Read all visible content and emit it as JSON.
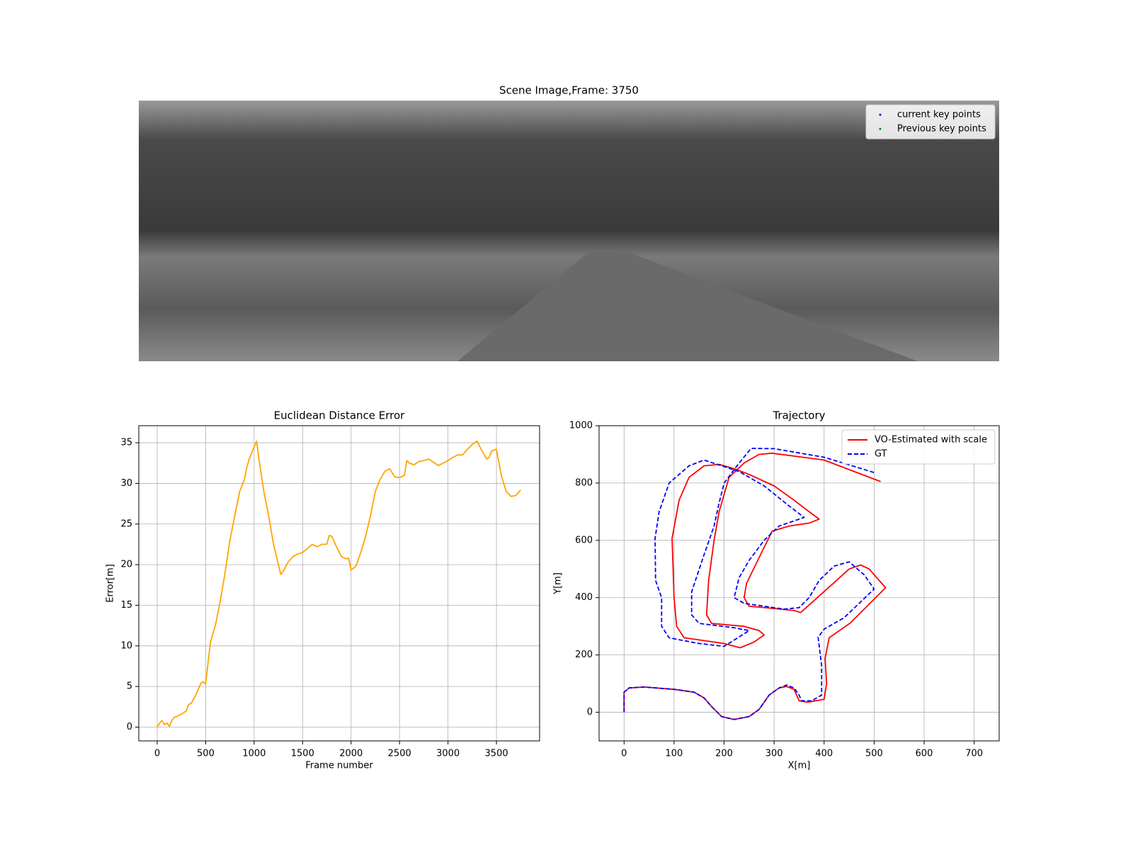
{
  "chart_data": [
    {
      "type": "image",
      "title": "Scene Image,Frame: 3750",
      "series": [
        {
          "name": "current key points",
          "color": "#0000ff"
        },
        {
          "name": "Previous key points",
          "color": "#008000"
        }
      ],
      "legend": "upper right"
    },
    {
      "type": "line",
      "title": "Euclidean Distance Error",
      "xlabel": "Frame number",
      "ylabel": "Error[m]",
      "color": "#ffa500",
      "grid": true,
      "x": [
        0,
        25,
        50,
        75,
        100,
        125,
        150,
        175,
        200,
        250,
        300,
        325,
        350,
        400,
        450,
        475,
        500,
        525,
        550,
        600,
        650,
        700,
        750,
        800,
        850,
        900,
        925,
        950,
        1000,
        1025,
        1050,
        1100,
        1150,
        1200,
        1250,
        1275,
        1300,
        1350,
        1400,
        1450,
        1500,
        1550,
        1600,
        1650,
        1700,
        1750,
        1775,
        1800,
        1850,
        1900,
        1950,
        1975,
        2000,
        2050,
        2100,
        2150,
        2200,
        2250,
        2300,
        2350,
        2400,
        2450,
        2500,
        2550,
        2575,
        2600,
        2650,
        2700,
        2750,
        2800,
        2850,
        2900,
        2950,
        3000,
        3050,
        3100,
        3150,
        3200,
        3250,
        3300,
        3350,
        3400,
        3425,
        3450,
        3500,
        3550,
        3600,
        3650,
        3700,
        3750
      ],
      "values": [
        0,
        0.5,
        0.8,
        0.3,
        0.5,
        0.1,
        0.8,
        1.2,
        1.3,
        1.6,
        2.0,
        2.8,
        2.9,
        4.0,
        5.4,
        5.6,
        5.3,
        8,
        10.5,
        12.5,
        15.5,
        19,
        23,
        26,
        29,
        30.5,
        32,
        33,
        34.5,
        35.2,
        33,
        29,
        26,
        22.5,
        20,
        18.8,
        19.2,
        20.3,
        21,
        21.3,
        21.5,
        22,
        22.5,
        22.2,
        22.5,
        22.5,
        23.6,
        23.5,
        22.2,
        21,
        20.7,
        20.8,
        19.3,
        19.8,
        21.5,
        23.5,
        26,
        29,
        30.5,
        31.5,
        31.8,
        30.8,
        30.7,
        31,
        32.8,
        32.5,
        32.3,
        32.7,
        32.8,
        33,
        32.6,
        32.2,
        32.5,
        32.8,
        33.2,
        33.5,
        33.5,
        34.2,
        34.8,
        35.2,
        34,
        33,
        33.2,
        34,
        34.2,
        31,
        29,
        28.4,
        28.5,
        29.2
      ],
      "xlim": [
        -190,
        3945
      ],
      "ylim": [
        -1.7,
        37.1
      ],
      "xticks": [
        0,
        500,
        1000,
        1500,
        2000,
        2500,
        3000,
        3500
      ],
      "yticks": [
        0,
        5,
        10,
        15,
        20,
        25,
        30,
        35
      ]
    },
    {
      "type": "line",
      "title": "Trajectory",
      "xlabel": "X[m]",
      "ylabel": "Y[m]",
      "grid": true,
      "legend": "upper right",
      "series": [
        {
          "name": "VO-Estimated with scale",
          "color": "#ff0000",
          "dashed": false,
          "x": [
            0,
            0,
            10,
            40,
            100,
            140,
            160,
            175,
            195,
            220,
            250,
            270,
            290,
            310,
            325,
            340,
            350,
            367,
            400,
            405,
            402,
            410,
            452,
            523,
            510,
            490,
            473,
            450,
            424,
            380,
            353,
            340,
            282,
            250,
            240,
            245,
            270,
            296,
            330,
            370,
            390,
            370,
            340,
            300,
            250,
            220,
            190,
            160,
            130,
            110,
            96,
            100,
            105,
            120,
            160,
            200,
            232,
            260,
            280,
            270,
            240,
            175,
            165,
            169,
            180,
            190,
            210,
            240,
            270,
            296,
            400,
            513
          ],
          "values": [
            0,
            70,
            85,
            88,
            80,
            70,
            50,
            20,
            -15,
            -25,
            -15,
            10,
            60,
            85,
            90,
            80,
            40,
            35,
            45,
            100,
            188,
            260,
            311,
            435,
            460,
            500,
            514,
            500,
            459,
            390,
            348,
            355,
            365,
            370,
            400,
            450,
            540,
            632,
            650,
            660,
            674,
            700,
            740,
            790,
            830,
            850,
            865,
            860,
            820,
            740,
            607,
            400,
            300,
            260,
            250,
            240,
            225,
            245,
            270,
            285,
            300,
            310,
            340,
            459,
            600,
            700,
            820,
            870,
            900,
            904,
            880,
            805
          ]
        },
        {
          "name": "GT",
          "color": "#0000ff",
          "dashed": true,
          "x": [
            0,
            0,
            10,
            40,
            100,
            140,
            160,
            175,
            195,
            220,
            250,
            270,
            290,
            310,
            325,
            340,
            350,
            355,
            375,
            395,
            395,
            388,
            400,
            440,
            500,
            480,
            450,
            420,
            390,
            370,
            350,
            320,
            240,
            220,
            230,
            250,
            280,
            310,
            360,
            330,
            280,
            230,
            160,
            130,
            90,
            70,
            62,
            63,
            75,
            75,
            90,
            150,
            200,
            250,
            220,
            150,
            135,
            135,
            160,
            180,
            190,
            200,
            230,
            254,
            300,
            400,
            503
          ],
          "values": [
            0,
            70,
            85,
            88,
            80,
            70,
            50,
            20,
            -15,
            -25,
            -15,
            10,
            60,
            85,
            95,
            85,
            60,
            40,
            40,
            60,
            163,
            262,
            290,
            330,
            430,
            480,
            525,
            510,
            460,
            400,
            365,
            360,
            380,
            400,
            470,
            530,
            600,
            650,
            680,
            720,
            790,
            840,
            880,
            860,
            800,
            700,
            607,
            460,
            400,
            300,
            260,
            240,
            230,
            285,
            295,
            310,
            340,
            420,
            550,
            650,
            730,
            800,
            870,
            921,
            920,
            890,
            835
          ]
        }
      ],
      "xlim": [
        -50,
        750
      ],
      "ylim": [
        -100,
        1000
      ],
      "xticks": [
        0,
        100,
        200,
        300,
        400,
        500,
        600,
        700
      ],
      "yticks": [
        0,
        200,
        400,
        600,
        800,
        1000
      ]
    }
  ]
}
